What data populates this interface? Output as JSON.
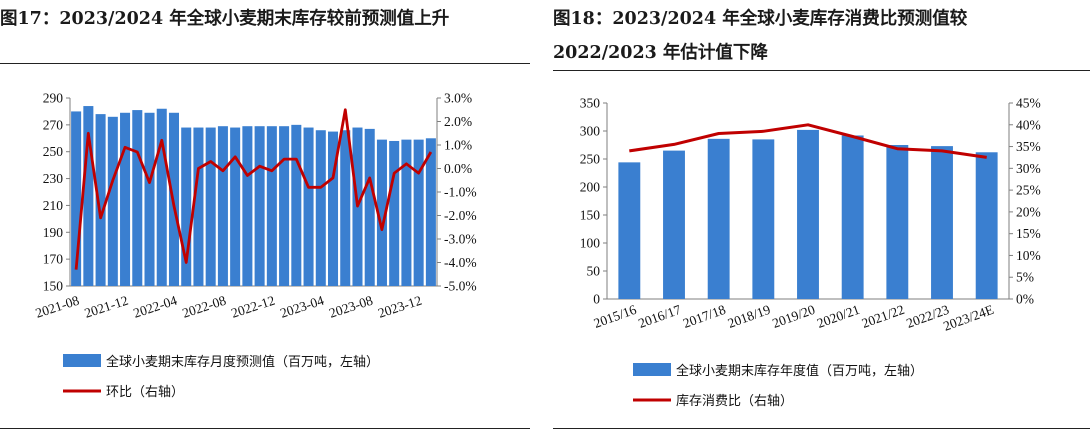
{
  "figures": [
    {
      "title": "图17：2023/2024 年全球小麦期末库存较前预测值上升",
      "legend": {
        "bar_label": "全球小麦期末库存月度预测值（百万吨，左轴）",
        "line_label": "环比（右轴）"
      }
    },
    {
      "title_line1": "图18：2023/2024  年全球小麦库存消费比预测值较",
      "title_line2": "2022/2023 年估计值下降",
      "legend": {
        "bar_label": "全球小麦期末库存年度值（百万吨，左轴）",
        "line_label": "库存消费比（右轴）"
      }
    }
  ],
  "colors": {
    "bar": "#3a7fd0",
    "line": "#c00000",
    "axis": "#7f7f7f"
  },
  "chart_data": [
    {
      "type": "bar+line",
      "title": "",
      "x_tick_labels": [
        "2021-08",
        "2021-12",
        "2022-04",
        "2022-08",
        "2022-12",
        "2023-04",
        "2023-08",
        "2023-12"
      ],
      "y_left": {
        "min": 150,
        "max": 290,
        "step": 20,
        "ticks": [
          "150",
          "170",
          "190",
          "210",
          "230",
          "250",
          "270",
          "290"
        ]
      },
      "y_right": {
        "min": -5,
        "max": 3,
        "step": 1,
        "ticks": [
          "-5.0%",
          "-4.0%",
          "-3.0%",
          "-2.0%",
          "-1.0%",
          "0.0%",
          "1.0%",
          "2.0%",
          "3.0%"
        ]
      },
      "series": [
        {
          "name": "全球小麦期末库存月度预测值（百万吨，左轴）",
          "type": "bar",
          "axis": "left",
          "values": [
            280,
            284,
            278,
            276,
            279,
            281,
            279,
            282,
            279,
            268,
            268,
            268,
            269,
            268,
            269,
            269,
            269,
            269,
            270,
            268,
            266,
            265,
            266,
            268,
            267,
            259,
            258,
            259,
            259,
            260
          ]
        },
        {
          "name": "环比（右轴）",
          "type": "line",
          "axis": "right",
          "values": [
            -4.3,
            1.5,
            -2.1,
            -0.5,
            0.9,
            0.7,
            -0.6,
            1.2,
            -1.6,
            -4.0,
            0.0,
            0.3,
            -0.1,
            0.5,
            -0.3,
            0.1,
            -0.1,
            0.4,
            0.4,
            -0.8,
            -0.8,
            -0.4,
            2.5,
            -1.6,
            -0.4,
            -2.6,
            -0.2,
            0.2,
            -0.2,
            0.7
          ]
        }
      ]
    },
    {
      "type": "bar+line",
      "title": "",
      "categories": [
        "2015/16",
        "2016/17",
        "2017/18",
        "2018/19",
        "2019/20",
        "2020/21",
        "2021/22",
        "2022/23",
        "2023/24E"
      ],
      "y_left": {
        "min": 0,
        "max": 350,
        "step": 50,
        "ticks": [
          "0",
          "50",
          "100",
          "150",
          "200",
          "250",
          "300",
          "350"
        ]
      },
      "y_right": {
        "min": 0,
        "max": 45,
        "step": 5,
        "ticks": [
          "0%",
          "5%",
          "10%",
          "15%",
          "20%",
          "25%",
          "30%",
          "35%",
          "40%",
          "45%"
        ]
      },
      "series": [
        {
          "name": "全球小麦期末库存年度值（百万吨，左轴）",
          "type": "bar",
          "axis": "left",
          "values": [
            244,
            265,
            286,
            285,
            302,
            292,
            275,
            273,
            262
          ]
        },
        {
          "name": "库存消费比（右轴）",
          "type": "line",
          "axis": "right",
          "values": [
            34.0,
            35.5,
            38.0,
            38.5,
            40.0,
            37.3,
            34.5,
            34.0,
            32.5
          ]
        }
      ]
    }
  ]
}
